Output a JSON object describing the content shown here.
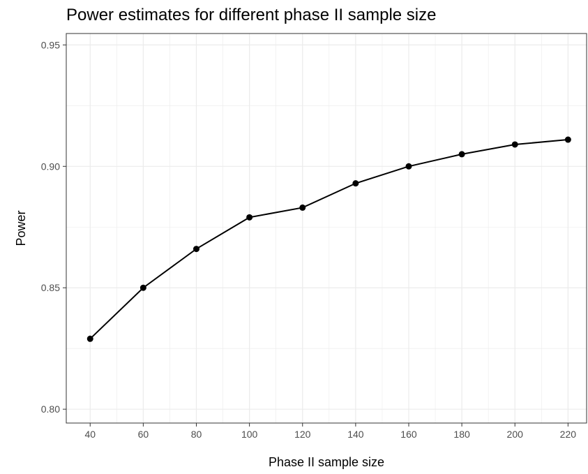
{
  "chart_data": {
    "type": "line",
    "title": "Power estimates for different phase II sample size",
    "xlabel": "Phase II sample size",
    "ylabel": "Power",
    "x": [
      40,
      60,
      80,
      100,
      120,
      140,
      160,
      180,
      200,
      220
    ],
    "series": [
      {
        "values": [
          0.829,
          0.85,
          0.866,
          0.879,
          0.883,
          0.893,
          0.9,
          0.905,
          0.909,
          0.911
        ]
      }
    ],
    "x_ticks": [
      40,
      60,
      80,
      100,
      120,
      140,
      160,
      180,
      200,
      220
    ],
    "y_ticks": [
      0.8,
      0.85,
      0.9,
      0.95
    ],
    "y_tick_labels": [
      "0.80",
      "0.85",
      "0.90",
      "0.95"
    ],
    "xlim": [
      31,
      227
    ],
    "ylim": [
      0.7943,
      0.9547
    ],
    "grid": true,
    "legend": "none",
    "colors": {
      "line": "#000000",
      "grid": "#ebebeb",
      "border": "#333333"
    }
  }
}
